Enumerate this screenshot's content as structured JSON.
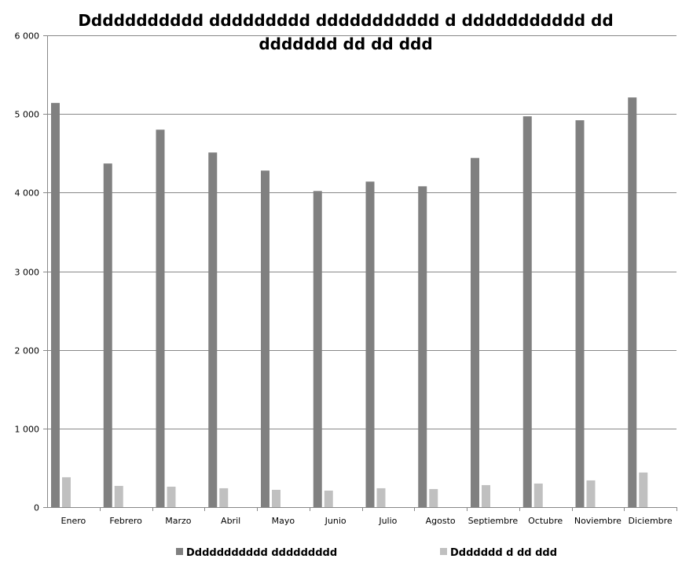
{
  "chart_data": {
    "type": "bar",
    "title_lines": [
      "Ddddddddddd ddddddddd ddddddddddd d ddddddddddd dd",
      "ddddddd dd dd ddd"
    ],
    "xlabel": "",
    "ylabel": "",
    "categories": [
      "Enero",
      "Febrero",
      "Marzo",
      "Abril",
      "Mayo",
      "Junio",
      "Julio",
      "Agosto",
      "Septiembre",
      "Octubre",
      "Noviembre",
      "Diciembre"
    ],
    "series": [
      {
        "name": "Ddddddddddd ddddddddd",
        "color": "#808080",
        "values": [
          5140,
          4370,
          4800,
          4510,
          4280,
          4020,
          4140,
          4080,
          4440,
          4970,
          4920,
          5210
        ]
      },
      {
        "name": "Ddddddd d dd ddd",
        "color": "#c0c0c0",
        "values": [
          380,
          270,
          260,
          240,
          220,
          210,
          240,
          230,
          280,
          300,
          340,
          440
        ]
      }
    ],
    "ylim": [
      0,
      6000
    ],
    "yticks": [
      0,
      1000,
      2000,
      3000,
      4000,
      5000,
      6000
    ],
    "ytick_labels": [
      "0",
      "1 000",
      "2 000",
      "3 000",
      "4 000",
      "5 000",
      "6 000"
    ],
    "grid": true,
    "legend_position": "bottom"
  }
}
